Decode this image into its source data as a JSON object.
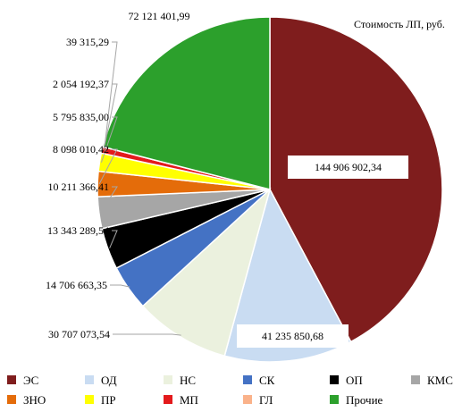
{
  "chart_data": {
    "type": "pie",
    "title": "Стоимость ЛП, руб.",
    "slices": [
      {
        "name": "ЭС",
        "value": 144906902.34,
        "label": "144 906 902,34",
        "color": "#7f1d1d"
      },
      {
        "name": "ОД",
        "value": 41235850.68,
        "label": "41 235 850,68",
        "color": "#c9dcf2"
      },
      {
        "name": "НС",
        "value": 30707073.54,
        "label": "30 707 073,54",
        "color": "#ebf1de"
      },
      {
        "name": "СК",
        "value": 14706663.35,
        "label": "14 706 663,35",
        "color": "#4472c4"
      },
      {
        "name": "ОП",
        "value": 13343289.54,
        "label": "13 343 289,54",
        "color": "#000000"
      },
      {
        "name": "КМС",
        "value": 10211366.41,
        "label": "10 211 366,41",
        "color": "#a6a6a6"
      },
      {
        "name": "ЗНО",
        "value": 8098010.42,
        "label": "8 098 010,42",
        "color": "#e46c0a"
      },
      {
        "name": "ПР",
        "value": 5795835.0,
        "label": "5 795 835,00",
        "color": "#ffff00"
      },
      {
        "name": "МП",
        "value": 2054192.37,
        "label": "2 054 192,37",
        "color": "#e31a1c"
      },
      {
        "name": "ГЛ",
        "value": 39315.29,
        "label": "39 315,29",
        "color": "#fab28a"
      },
      {
        "name": "Прочие",
        "value": 72121401.99,
        "label": "72 121 401,99",
        "color": "#2ca02c"
      }
    ],
    "legend_position": "bottom"
  }
}
